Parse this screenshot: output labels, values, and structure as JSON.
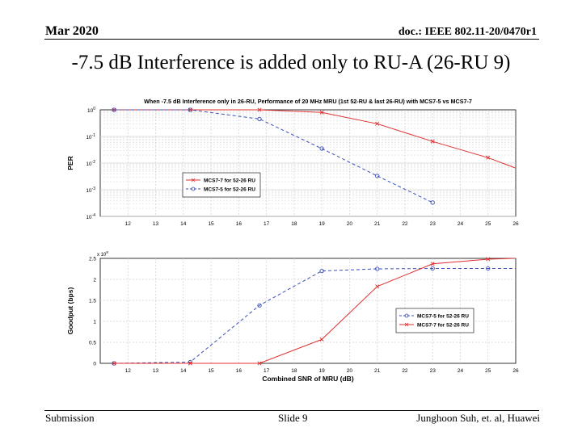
{
  "slide": {
    "date": "Mar 2020",
    "doc_id": "doc.: IEEE 802.11-20/0470r1",
    "title": "-7.5 dB Interference is added only to RU-A (26-RU 9)",
    "footer_left": "Submission",
    "footer_center": "Slide 9",
    "footer_right": "Junghoon Suh, et. al, Huawei"
  },
  "colors": {
    "mcs77": "#e03030",
    "mcs75": "#3a50b8",
    "grid": "#d0d0d0"
  },
  "chart_data": [
    {
      "type": "line",
      "title": "When -7.5 dB Interference only in 26-RU, Performance of 20 MHz MRU (1st 52-RU & last 26-RU) with MCS7-5 vs MCS7-7",
      "ylabel": "PER",
      "xlabel": "",
      "xlim": [
        11,
        26
      ],
      "ylim_log10": [
        -4,
        0
      ],
      "y_scale": "log",
      "x_ticks": [
        "12",
        "13",
        "14",
        "15",
        "16",
        "17",
        "18",
        "19",
        "20",
        "21",
        "22",
        "23",
        "24",
        "25",
        "26"
      ],
      "y_ticks": [
        "10^0",
        "10^-1",
        "10^-2",
        "10^-3",
        "10^-4"
      ],
      "legend_position": "middle-left",
      "grid": true,
      "series": [
        {
          "name": "MCS7-7 for 52-26 RU",
          "style": "solid",
          "marker": "x",
          "x": [
            11.5,
            14.25,
            16.75,
            19,
            21,
            23,
            25,
            26
          ],
          "y": [
            1,
            1,
            1,
            0.8,
            0.3,
            0.065,
            0.016,
            0.0065
          ]
        },
        {
          "name": "MCS7-5 for 52-26 RU",
          "style": "dashed",
          "marker": "o",
          "x": [
            11.5,
            14.25,
            16.75,
            19,
            21,
            23
          ],
          "y": [
            1,
            1,
            0.45,
            0.035,
            0.0033,
            0.00033
          ]
        }
      ]
    },
    {
      "type": "line",
      "title": "",
      "ylabel": "Goodput (bps)",
      "xlabel": "Combined SNR of MRU (dB)",
      "xlim": [
        11,
        26
      ],
      "ylim": [
        0,
        2.5
      ],
      "y_multiplier": "x 10^8",
      "x_ticks": [
        "12",
        "13",
        "14",
        "15",
        "16",
        "17",
        "18",
        "19",
        "20",
        "21",
        "22",
        "23",
        "24",
        "25",
        "26"
      ],
      "y_ticks": [
        "0",
        "0.5",
        "1",
        "1.5",
        "2",
        "2.5"
      ],
      "legend_position": "bottom-right",
      "grid": true,
      "series": [
        {
          "name": "MCS7-5 for 52-26 RU",
          "style": "dashed",
          "marker": "o",
          "x": [
            11.5,
            14.25,
            16.75,
            19,
            21,
            23,
            25,
            26
          ],
          "y": [
            0,
            0.03,
            1.38,
            2.2,
            2.25,
            2.26,
            2.26,
            2.26
          ]
        },
        {
          "name": "MCS7-7 for 52-26 RU",
          "style": "solid",
          "marker": "x",
          "x": [
            11.5,
            14.25,
            16.75,
            19,
            21,
            23,
            25,
            26
          ],
          "y": [
            0,
            0,
            0,
            0.57,
            1.83,
            2.37,
            2.48,
            2.5
          ]
        }
      ]
    }
  ]
}
